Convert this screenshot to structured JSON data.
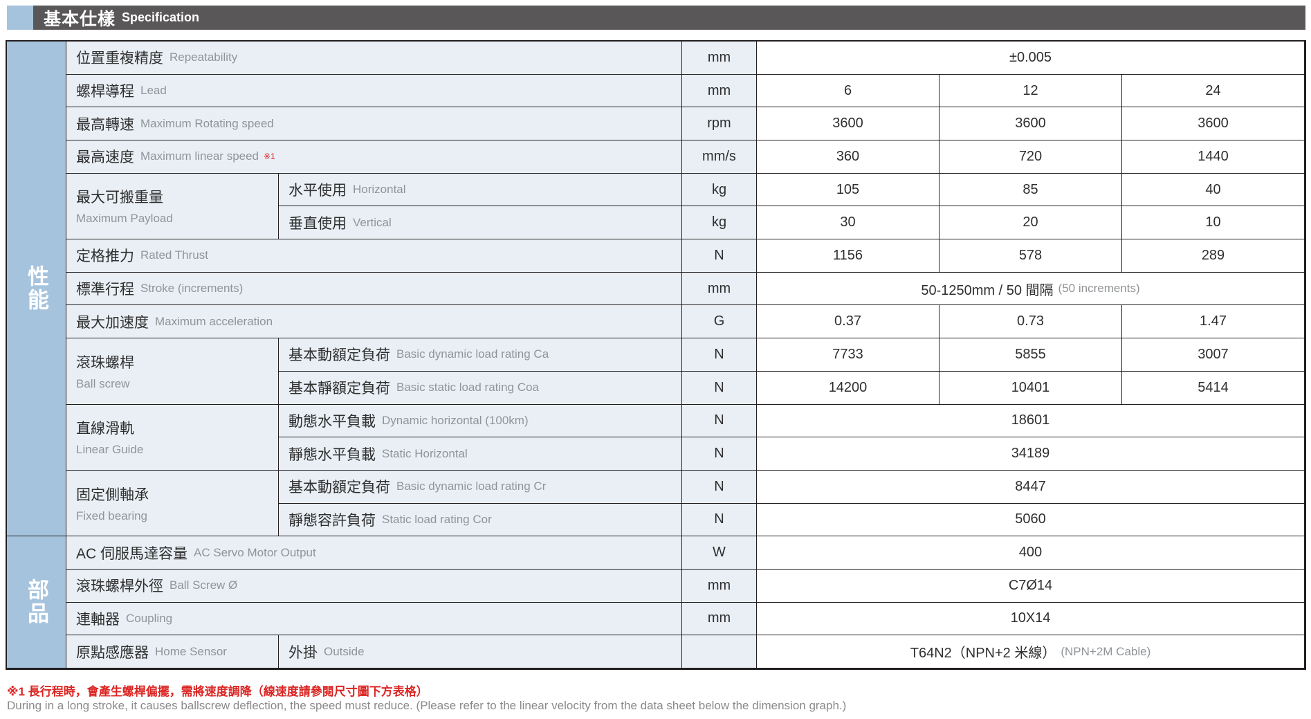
{
  "header": {
    "title_zh": "基本仕樣",
    "title_en": "Specification"
  },
  "sidebar": {
    "performance": "性能",
    "parts": "部品"
  },
  "spec": {
    "repeatability": {
      "zh": "位置重複精度",
      "en": "Repeatability",
      "unit": "mm",
      "value": "±0.005"
    },
    "lead": {
      "zh": "螺桿導程",
      "en": "Lead",
      "unit": "mm",
      "v1": "6",
      "v2": "12",
      "v3": "24"
    },
    "max_rotating_speed": {
      "zh": "最高轉速",
      "en": "Maximum Rotating speed",
      "unit": "rpm",
      "v1": "3600",
      "v2": "3600",
      "v3": "3600"
    },
    "max_linear_speed": {
      "zh": "最高速度",
      "en": "Maximum linear speed",
      "note": "※1",
      "unit": "mm/s",
      "v1": "360",
      "v2": "720",
      "v3": "1440"
    },
    "payload": {
      "zh": "最大可搬重量",
      "en": "Maximum Payload",
      "horizontal": {
        "zh": "水平使用",
        "en": "Horizontal",
        "unit": "kg",
        "v1": "105",
        "v2": "85",
        "v3": "40"
      },
      "vertical": {
        "zh": "垂直使用",
        "en": "Vertical",
        "unit": "kg",
        "v1": "30",
        "v2": "20",
        "v3": "10"
      }
    },
    "rated_thrust": {
      "zh": "定格推力",
      "en": "Rated Thrust",
      "unit": "N",
      "v1": "1156",
      "v2": "578",
      "v3": "289"
    },
    "stroke": {
      "zh": "標準行程",
      "en": "Stroke (increments)",
      "unit": "mm",
      "value": "50-1250mm / 50 間隔",
      "value_en": "(50 increments)"
    },
    "max_acceleration": {
      "zh": "最大加速度",
      "en": "Maximum acceleration",
      "unit": "G",
      "v1": "0.37",
      "v2": "0.73",
      "v3": "1.47"
    },
    "ball_screw": {
      "zh": "滾珠螺桿",
      "en": "Ball screw",
      "dynamic": {
        "zh": "基本動額定負荷",
        "en": "Basic dynamic load rating Ca",
        "unit": "N",
        "v1": "7733",
        "v2": "5855",
        "v3": "3007"
      },
      "static": {
        "zh": "基本靜額定負荷",
        "en": "Basic static load rating Coa",
        "unit": "N",
        "v1": "14200",
        "v2": "10401",
        "v3": "5414"
      }
    },
    "linear_guide": {
      "zh": "直線滑軌",
      "en": "Linear Guide",
      "dynamic": {
        "zh": "動態水平負載",
        "en": "Dynamic horizontal (100km)",
        "unit": "N",
        "value": "18601"
      },
      "static": {
        "zh": "靜態水平負載",
        "en": "Static Horizontal",
        "unit": "N",
        "value": "34189"
      }
    },
    "fixed_bearing": {
      "zh": "固定側軸承",
      "en": "Fixed bearing",
      "dynamic": {
        "zh": "基本動額定負荷",
        "en": "Basic dynamic load rating Cr",
        "unit": "N",
        "value": "8447"
      },
      "static": {
        "zh": "靜態容許負荷",
        "en": "Static load rating Cor",
        "unit": "N",
        "value": "5060"
      }
    },
    "servo_output": {
      "zh": "AC 伺服馬達容量",
      "en": "AC Servo Motor Output",
      "unit": "W",
      "value": "400"
    },
    "ball_screw_dia": {
      "zh": "滾珠螺桿外徑",
      "en": "Ball Screw Ø",
      "unit": "mm",
      "value": "C7Ø14"
    },
    "coupling": {
      "zh": "連軸器",
      "en": "Coupling",
      "unit": "mm",
      "value": "10X14"
    },
    "home_sensor": {
      "zh": "原點感應器",
      "en": "Home Sensor",
      "sub_zh": "外掛",
      "sub_en": "Outside",
      "unit": "",
      "value": "T64N2（NPN+2 米線）",
      "value_en": "(NPN+2M Cable)"
    }
  },
  "notes": {
    "zh": "※1 長行程時，會產生螺桿偏擺，需將速度調降（線速度請參閱尺寸圖下方表格）",
    "en": "During in a long stroke, it causes ballscrew deflection, the speed must reduce. (Please refer to the linear velocity from the data sheet below the dimension graph.)"
  },
  "colors": {
    "accent_blue": "#a5c3dd",
    "header_gray": "#595757",
    "cell_blue": "#e9eff5",
    "note_red": "#db2422"
  }
}
